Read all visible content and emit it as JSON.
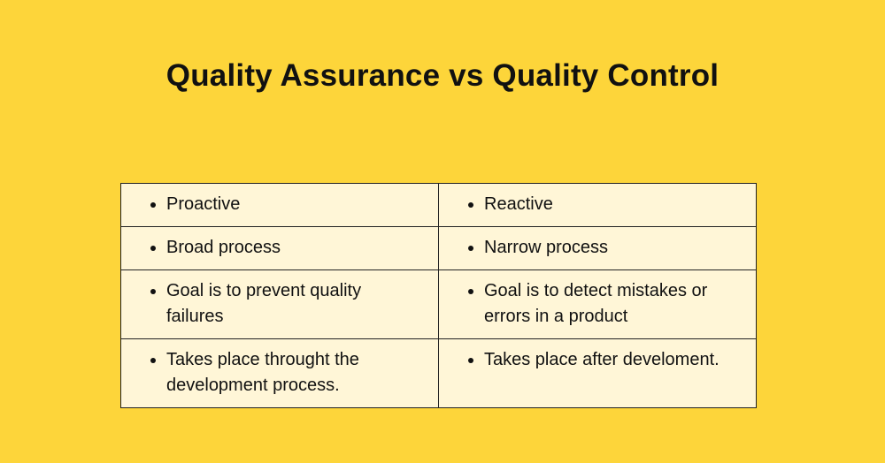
{
  "title": "Quality Assurance vs Quality Control",
  "colors": {
    "background": "#FDD53A",
    "table_cell": "#FFF6D7",
    "border": "#222222"
  },
  "table": {
    "rows": [
      [
        "Proactive",
        "Reactive"
      ],
      [
        "Broad process",
        "Narrow process"
      ],
      [
        "Goal is to prevent quality failures",
        "Goal is to detect mistakes or errors in a product"
      ],
      [
        "Takes place throught the development process.",
        "Takes place after develoment."
      ]
    ]
  }
}
